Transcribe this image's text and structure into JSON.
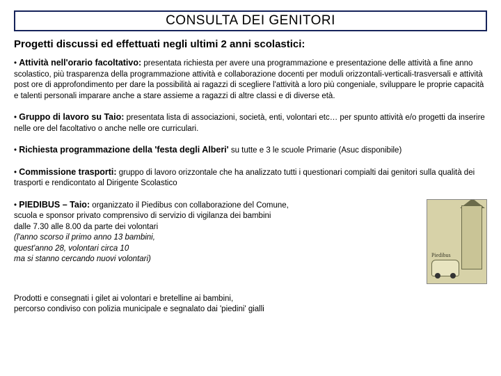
{
  "colors": {
    "border": "#16235a",
    "text": "#000000",
    "background": "#ffffff",
    "thumb_bg": "#d7d2a8"
  },
  "title": "CONSULTA DEI GENITORI",
  "subheading": "Progetti discussi ed effettuati negli ultimi 2 anni scolastici:",
  "items": [
    {
      "lead": "Attività nell'orario facoltativo:",
      "body": " presentata richiesta per avere una programmazione e presentazione delle attività a fine anno scolastico, più trasparenza della programmazione attività e collaborazione docenti per moduli orizzontali-verticali-trasversali e attività post ore di approfondimento per dare la possibilità ai ragazzi di scegliere l'attività a loro più congeniale, sviluppare le proprie capacità e talenti personali imparare anche a stare assieme a ragazzi di altre classi e di diverse età."
    },
    {
      "lead": "Gruppo di lavoro su Taio:",
      "body": " presentata lista di associazioni, società, enti, volontari etc… per spunto attività e/o progetti da inserire nelle ore del facoltativo o anche nelle ore curriculari."
    },
    {
      "lead": "Richiesta programmazione della 'festa degli Alberi'",
      "body": " su tutte e 3 le scuole Primarie (Asuc disponibile)"
    },
    {
      "lead": "Commissione trasporti:",
      "body": " gruppo di lavoro orizzontale che ha analizzato tutti i questionari compialti dai genitori sulla qualità dei trasporti e rendicontato al Dirigente Scolastico"
    }
  ],
  "piedibus": {
    "lead": "PIEDIBUS – Taio:",
    "line1": " organizzato il Piedibus con collaborazione del Comune,",
    "line2": "scuola e sponsor privato comprensivo di servizio di vigilanza dei bambini",
    "line3": "dalle 7.30 alle 8.00  da parte dei volontari",
    "line4": "(l'anno scorso il primo anno 13 bambini,",
    "line5": "quest'anno 28, volontari circa 10",
    "line6": "ma si stanno cercando nuovi volontari)",
    "thumb_label": "Piedibus"
  },
  "footer": {
    "line1": "Prodotti e consegnati i gilet ai volontari e bretelline ai bambini,",
    "line2": "percorso condiviso con polizia municipale e segnalato dai 'piedini' gialli"
  }
}
